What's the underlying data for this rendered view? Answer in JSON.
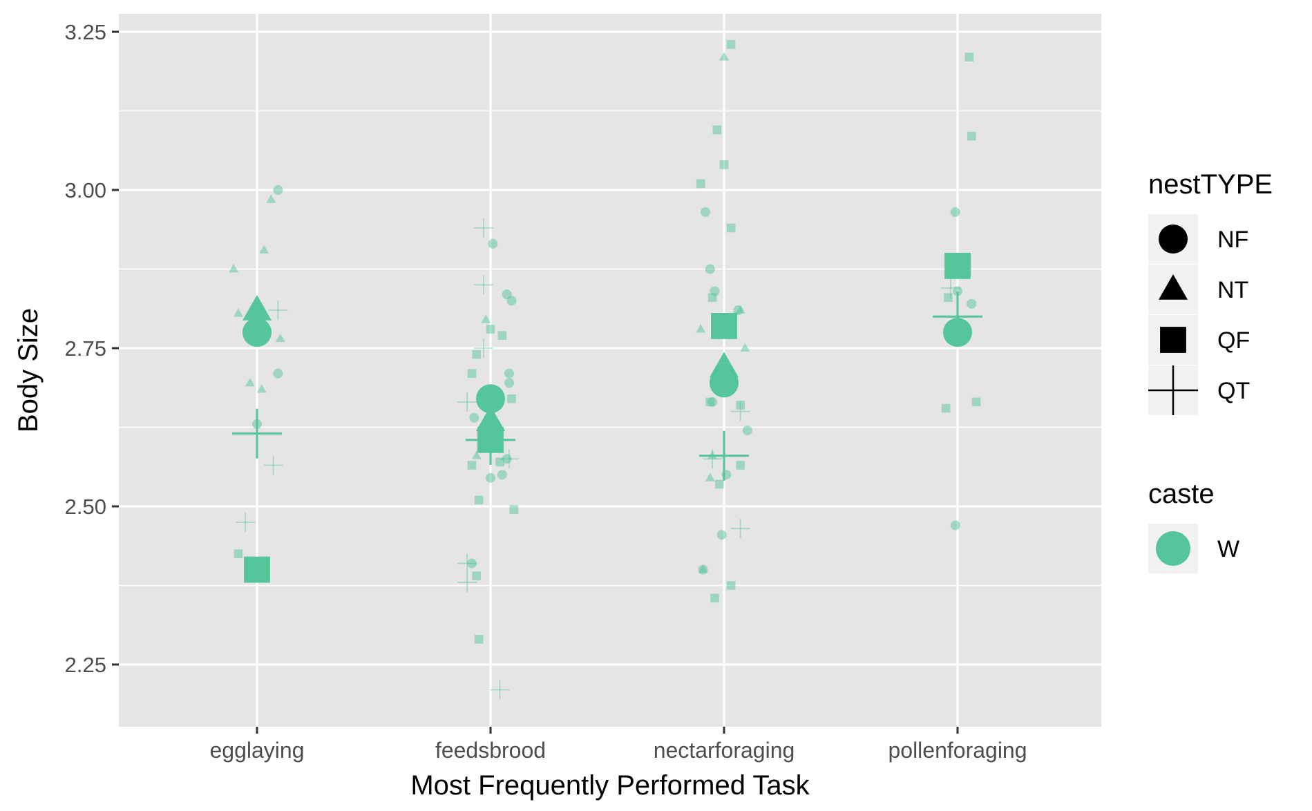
{
  "chart_data": {
    "type": "scatter",
    "xlabel": "Most Frequently Performed Task",
    "ylabel": "Body Size",
    "categories": [
      "egglaying",
      "feedsbrood",
      "nectarforaging",
      "pollenforaging"
    ],
    "ylim": [
      2.19,
      3.285
    ],
    "yticks": [
      2.25,
      2.5,
      2.75,
      3.0,
      3.25
    ],
    "ytick_labels": [
      "2.25",
      "2.50",
      "2.75",
      "3.00",
      "3.25"
    ],
    "grid": true,
    "legend_position": "right",
    "point_color": "#55C59A",
    "shape_legend": {
      "title": "nestTYPE",
      "items": [
        {
          "label": "NF",
          "shape": "circle"
        },
        {
          "label": "NT",
          "shape": "triangle"
        },
        {
          "label": "QF",
          "shape": "square"
        },
        {
          "label": "QT",
          "shape": "cross"
        }
      ]
    },
    "color_legend": {
      "title": "caste",
      "items": [
        {
          "label": "W",
          "color": "#55C59A"
        }
      ]
    },
    "means": [
      {
        "category": "egglaying",
        "nest": "NF",
        "y": 2.775
      },
      {
        "category": "egglaying",
        "nest": "NT",
        "y": 2.81
      },
      {
        "category": "egglaying",
        "nest": "QF",
        "y": 2.4
      },
      {
        "category": "egglaying",
        "nest": "QT",
        "y": 2.615
      },
      {
        "category": "feedsbrood",
        "nest": "NF",
        "y": 2.67
      },
      {
        "category": "feedsbrood",
        "nest": "NT",
        "y": 2.635
      },
      {
        "category": "feedsbrood",
        "nest": "QF",
        "y": 2.605
      },
      {
        "category": "feedsbrood",
        "nest": "QT",
        "y": 2.605
      },
      {
        "category": "nectarforaging",
        "nest": "NF",
        "y": 2.695
      },
      {
        "category": "nectarforaging",
        "nest": "NT",
        "y": 2.72
      },
      {
        "category": "nectarforaging",
        "nest": "QF",
        "y": 2.785
      },
      {
        "category": "nectarforaging",
        "nest": "QT",
        "y": 2.58
      },
      {
        "category": "pollenforaging",
        "nest": "NF",
        "y": 2.775
      },
      {
        "category": "pollenforaging",
        "nest": "QF",
        "y": 2.88
      },
      {
        "category": "pollenforaging",
        "nest": "QT",
        "y": 2.8
      }
    ],
    "points": [
      {
        "category": "egglaying",
        "nest": "NF",
        "jitter": 0.09,
        "y": 3.0
      },
      {
        "category": "egglaying",
        "nest": "NF",
        "jitter": 0.09,
        "y": 2.71
      },
      {
        "category": "egglaying",
        "nest": "NF",
        "jitter": 0.0,
        "y": 2.63
      },
      {
        "category": "egglaying",
        "nest": "NT",
        "jitter": 0.06,
        "y": 2.985
      },
      {
        "category": "egglaying",
        "nest": "NT",
        "jitter": 0.03,
        "y": 2.905
      },
      {
        "category": "egglaying",
        "nest": "NT",
        "jitter": -0.1,
        "y": 2.875
      },
      {
        "category": "egglaying",
        "nest": "NT",
        "jitter": -0.08,
        "y": 2.805
      },
      {
        "category": "egglaying",
        "nest": "NT",
        "jitter": 0.1,
        "y": 2.765
      },
      {
        "category": "egglaying",
        "nest": "NT",
        "jitter": -0.03,
        "y": 2.695
      },
      {
        "category": "egglaying",
        "nest": "NT",
        "jitter": 0.02,
        "y": 2.685
      },
      {
        "category": "egglaying",
        "nest": "QF",
        "jitter": -0.08,
        "y": 2.425
      },
      {
        "category": "egglaying",
        "nest": "QT",
        "jitter": 0.09,
        "y": 2.81
      },
      {
        "category": "egglaying",
        "nest": "QT",
        "jitter": 0.07,
        "y": 2.565
      },
      {
        "category": "egglaying",
        "nest": "QT",
        "jitter": -0.05,
        "y": 2.475
      },
      {
        "category": "feedsbrood",
        "nest": "NF",
        "jitter": 0.01,
        "y": 2.915
      },
      {
        "category": "feedsbrood",
        "nest": "NF",
        "jitter": 0.07,
        "y": 2.835
      },
      {
        "category": "feedsbrood",
        "nest": "NF",
        "jitter": 0.09,
        "y": 2.825
      },
      {
        "category": "feedsbrood",
        "nest": "NF",
        "jitter": 0.08,
        "y": 2.71
      },
      {
        "category": "feedsbrood",
        "nest": "NF",
        "jitter": 0.08,
        "y": 2.695
      },
      {
        "category": "feedsbrood",
        "nest": "NF",
        "jitter": -0.07,
        "y": 2.64
      },
      {
        "category": "feedsbrood",
        "nest": "NF",
        "jitter": 0.07,
        "y": 2.575
      },
      {
        "category": "feedsbrood",
        "nest": "NF",
        "jitter": 0.05,
        "y": 2.55
      },
      {
        "category": "feedsbrood",
        "nest": "NF",
        "jitter": 0.0,
        "y": 2.545
      },
      {
        "category": "feedsbrood",
        "nest": "NF",
        "jitter": -0.08,
        "y": 2.41
      },
      {
        "category": "feedsbrood",
        "nest": "NT",
        "jitter": -0.02,
        "y": 2.795
      },
      {
        "category": "feedsbrood",
        "nest": "NT",
        "jitter": -0.06,
        "y": 2.58
      },
      {
        "category": "feedsbrood",
        "nest": "QF",
        "jitter": 0.0,
        "y": 2.78
      },
      {
        "category": "feedsbrood",
        "nest": "QF",
        "jitter": 0.05,
        "y": 2.77
      },
      {
        "category": "feedsbrood",
        "nest": "QF",
        "jitter": -0.06,
        "y": 2.74
      },
      {
        "category": "feedsbrood",
        "nest": "QF",
        "jitter": -0.08,
        "y": 2.71
      },
      {
        "category": "feedsbrood",
        "nest": "QF",
        "jitter": 0.09,
        "y": 2.67
      },
      {
        "category": "feedsbrood",
        "nest": "QF",
        "jitter": -0.08,
        "y": 2.565
      },
      {
        "category": "feedsbrood",
        "nest": "QF",
        "jitter": 0.04,
        "y": 2.57
      },
      {
        "category": "feedsbrood",
        "nest": "QF",
        "jitter": -0.05,
        "y": 2.51
      },
      {
        "category": "feedsbrood",
        "nest": "QF",
        "jitter": 0.1,
        "y": 2.495
      },
      {
        "category": "feedsbrood",
        "nest": "QF",
        "jitter": -0.06,
        "y": 2.39
      },
      {
        "category": "feedsbrood",
        "nest": "QF",
        "jitter": -0.05,
        "y": 2.29
      },
      {
        "category": "feedsbrood",
        "nest": "QT",
        "jitter": -0.03,
        "y": 2.94
      },
      {
        "category": "feedsbrood",
        "nest": "QT",
        "jitter": -0.03,
        "y": 2.85
      },
      {
        "category": "feedsbrood",
        "nest": "QT",
        "jitter": -0.03,
        "y": 2.75
      },
      {
        "category": "feedsbrood",
        "nest": "QT",
        "jitter": -0.1,
        "y": 2.665
      },
      {
        "category": "feedsbrood",
        "nest": "QT",
        "jitter": 0.08,
        "y": 2.575
      },
      {
        "category": "feedsbrood",
        "nest": "QT",
        "jitter": -0.1,
        "y": 2.41
      },
      {
        "category": "feedsbrood",
        "nest": "QT",
        "jitter": -0.1,
        "y": 2.38
      },
      {
        "category": "feedsbrood",
        "nest": "QT",
        "jitter": 0.04,
        "y": 2.21
      },
      {
        "category": "nectarforaging",
        "nest": "NF",
        "jitter": -0.08,
        "y": 2.965
      },
      {
        "category": "nectarforaging",
        "nest": "NF",
        "jitter": -0.06,
        "y": 2.875
      },
      {
        "category": "nectarforaging",
        "nest": "NF",
        "jitter": -0.04,
        "y": 2.84
      },
      {
        "category": "nectarforaging",
        "nest": "NF",
        "jitter": 0.06,
        "y": 2.81
      },
      {
        "category": "nectarforaging",
        "nest": "NF",
        "jitter": -0.05,
        "y": 2.665
      },
      {
        "category": "nectarforaging",
        "nest": "NF",
        "jitter": 0.1,
        "y": 2.62
      },
      {
        "category": "nectarforaging",
        "nest": "NF",
        "jitter": 0.01,
        "y": 2.55
      },
      {
        "category": "nectarforaging",
        "nest": "NF",
        "jitter": -0.01,
        "y": 2.455
      },
      {
        "category": "nectarforaging",
        "nest": "NF",
        "jitter": -0.09,
        "y": 2.4
      },
      {
        "category": "nectarforaging",
        "nest": "NT",
        "jitter": 0.0,
        "y": 3.21
      },
      {
        "category": "nectarforaging",
        "nest": "NT",
        "jitter": 0.07,
        "y": 2.81
      },
      {
        "category": "nectarforaging",
        "nest": "NT",
        "jitter": -0.1,
        "y": 2.78
      },
      {
        "category": "nectarforaging",
        "nest": "NT",
        "jitter": 0.09,
        "y": 2.75
      },
      {
        "category": "nectarforaging",
        "nest": "NT",
        "jitter": -0.05,
        "y": 2.58
      },
      {
        "category": "nectarforaging",
        "nest": "NT",
        "jitter": -0.06,
        "y": 2.545
      },
      {
        "category": "nectarforaging",
        "nest": "NT",
        "jitter": -0.09,
        "y": 2.4
      },
      {
        "category": "nectarforaging",
        "nest": "QF",
        "jitter": 0.03,
        "y": 3.23
      },
      {
        "category": "nectarforaging",
        "nest": "QF",
        "jitter": -0.03,
        "y": 3.095
      },
      {
        "category": "nectarforaging",
        "nest": "QF",
        "jitter": 0.0,
        "y": 3.04
      },
      {
        "category": "nectarforaging",
        "nest": "QF",
        "jitter": -0.1,
        "y": 3.01
      },
      {
        "category": "nectarforaging",
        "nest": "QF",
        "jitter": 0.03,
        "y": 2.94
      },
      {
        "category": "nectarforaging",
        "nest": "QF",
        "jitter": -0.05,
        "y": 2.83
      },
      {
        "category": "nectarforaging",
        "nest": "QF",
        "jitter": 0.07,
        "y": 2.66
      },
      {
        "category": "nectarforaging",
        "nest": "QF",
        "jitter": -0.06,
        "y": 2.665
      },
      {
        "category": "nectarforaging",
        "nest": "QF",
        "jitter": 0.07,
        "y": 2.565
      },
      {
        "category": "nectarforaging",
        "nest": "QF",
        "jitter": -0.02,
        "y": 2.535
      },
      {
        "category": "nectarforaging",
        "nest": "QF",
        "jitter": 0.03,
        "y": 2.375
      },
      {
        "category": "nectarforaging",
        "nest": "QF",
        "jitter": -0.04,
        "y": 2.355
      },
      {
        "category": "nectarforaging",
        "nest": "QT",
        "jitter": 0.07,
        "y": 2.65
      },
      {
        "category": "nectarforaging",
        "nest": "QT",
        "jitter": -0.05,
        "y": 2.575
      },
      {
        "category": "nectarforaging",
        "nest": "QT",
        "jitter": 0.07,
        "y": 2.465
      },
      {
        "category": "pollenforaging",
        "nest": "NF",
        "jitter": -0.01,
        "y": 2.965
      },
      {
        "category": "pollenforaging",
        "nest": "NF",
        "jitter": 0.0,
        "y": 2.84
      },
      {
        "category": "pollenforaging",
        "nest": "NF",
        "jitter": 0.06,
        "y": 2.82
      },
      {
        "category": "pollenforaging",
        "nest": "NF",
        "jitter": -0.01,
        "y": 2.47
      },
      {
        "category": "pollenforaging",
        "nest": "QF",
        "jitter": 0.05,
        "y": 3.21
      },
      {
        "category": "pollenforaging",
        "nest": "QF",
        "jitter": 0.06,
        "y": 3.085
      },
      {
        "category": "pollenforaging",
        "nest": "QF",
        "jitter": -0.04,
        "y": 2.83
      },
      {
        "category": "pollenforaging",
        "nest": "QF",
        "jitter": 0.08,
        "y": 2.665
      },
      {
        "category": "pollenforaging",
        "nest": "QF",
        "jitter": -0.05,
        "y": 2.655
      },
      {
        "category": "pollenforaging",
        "nest": "QT",
        "jitter": -0.03,
        "y": 2.845
      }
    ]
  }
}
